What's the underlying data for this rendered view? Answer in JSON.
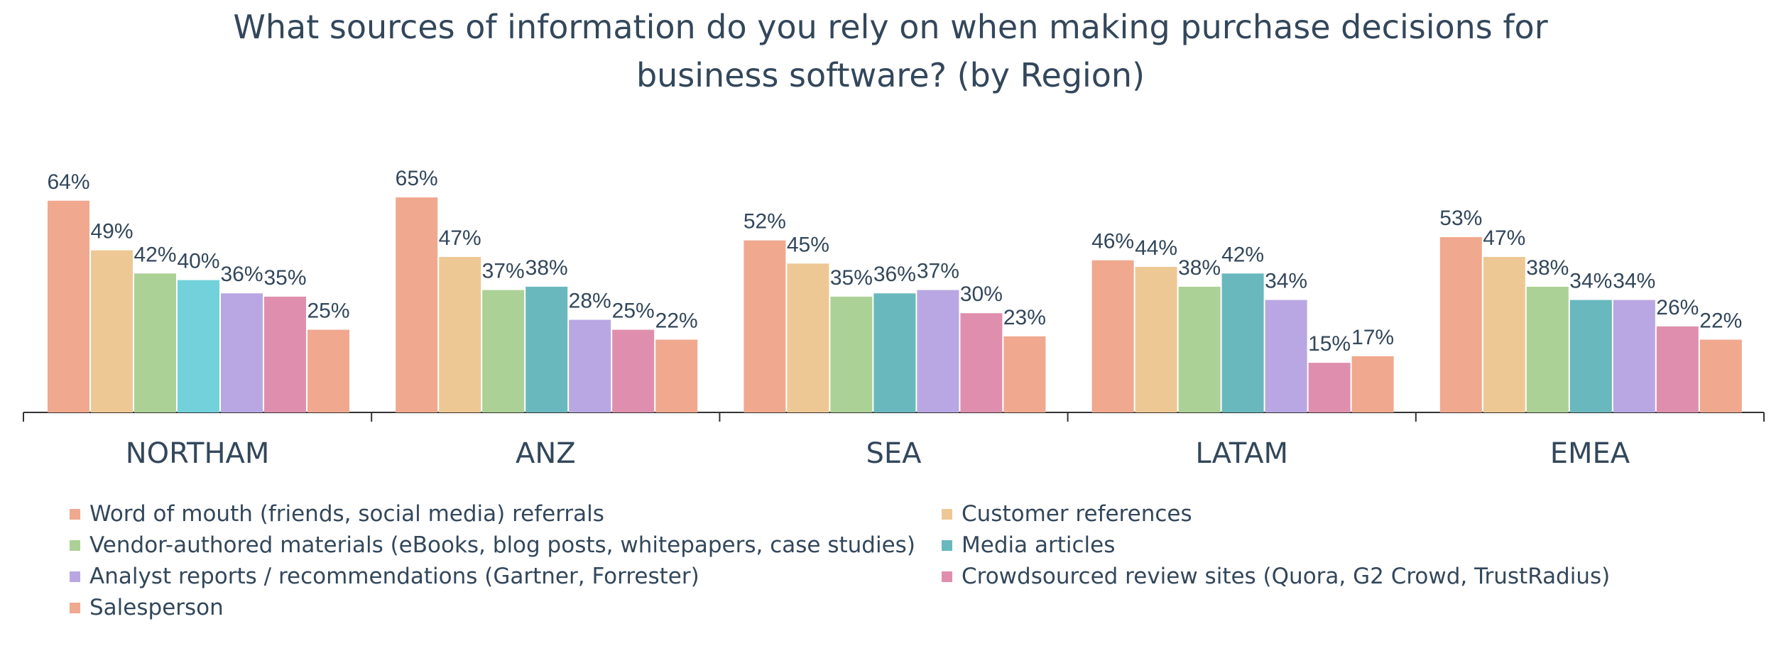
{
  "chart_data": {
    "type": "bar",
    "title_lines": [
      "What sources of information do you rely on when making purchase decisions for",
      "business software? (by Region)"
    ],
    "categories": [
      "NORTHAM",
      "ANZ",
      "SEA",
      "LATAM",
      "EMEA"
    ],
    "ylim": [
      0,
      100
    ],
    "value_suffix": "%",
    "legend_position": "bottom",
    "grid": false,
    "series": [
      {
        "name": "Word of mouth (friends, social media) referrals",
        "values": [
          64,
          65,
          52,
          46,
          53
        ],
        "color": "#f0a88f"
      },
      {
        "name": "Customer references",
        "values": [
          49,
          47,
          45,
          44,
          47
        ],
        "color": "#eec894"
      },
      {
        "name": "Vendor-authored materials (eBooks, blog posts, whitepapers, case studies)",
        "values": [
          42,
          37,
          35,
          38,
          38
        ],
        "color": "#acd196"
      },
      {
        "name": "Media articles",
        "values": [
          40,
          38,
          36,
          42,
          34
        ],
        "color": "#69b8be"
      },
      {
        "name": "Analyst reports / recommendations (Gartner, Forrester)",
        "values": [
          36,
          28,
          37,
          34,
          34
        ],
        "color": "#b9a7e3"
      },
      {
        "name": "Crowdsourced review sites (Quora, G2 Crowd, TrustRadius)",
        "values": [
          35,
          25,
          30,
          15,
          26
        ],
        "color": "#df8fad"
      },
      {
        "name": "Salesperson",
        "values": [
          25,
          22,
          23,
          17,
          22
        ],
        "color": "#f0a88f"
      }
    ],
    "series_colors_by_category": {
      "Media articles": [
        "#72d1da",
        "#69b8be",
        "#69b8be",
        "#69b8be",
        "#69b8be"
      ]
    },
    "colors": {
      "title": "#33475b",
      "labels": "#33475b",
      "axis": "#333333"
    }
  }
}
